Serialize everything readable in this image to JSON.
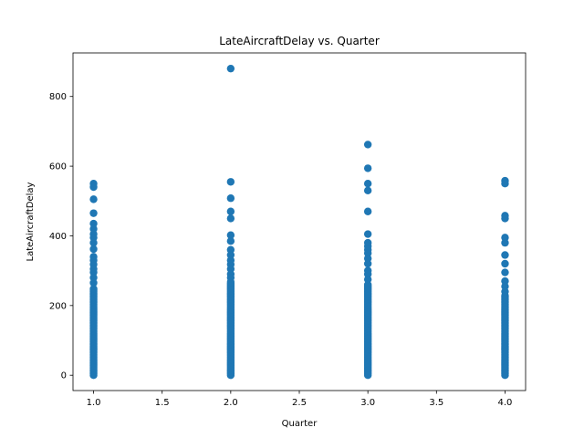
{
  "chart_data": {
    "type": "scatter",
    "title": "LateAircraftDelay vs. Quarter",
    "xlabel": "Quarter",
    "ylabel": "LateAircraftDelay",
    "xlim": [
      0.85,
      4.15
    ],
    "ylim": [
      -44,
      925
    ],
    "xticks": [
      1.0,
      1.5,
      2.0,
      2.5,
      3.0,
      3.5,
      4.0
    ],
    "xtick_labels": [
      "1.0",
      "1.5",
      "2.0",
      "2.5",
      "3.0",
      "3.5",
      "4.0"
    ],
    "yticks": [
      0,
      200,
      400,
      600,
      800
    ],
    "ytick_labels": [
      "0",
      "200",
      "400",
      "600",
      "800"
    ],
    "grid": false,
    "marker_color": "#1f77b4",
    "series": [
      {
        "x": 1.0,
        "dense_range": [
          0,
          250
        ],
        "outliers": [
          550,
          540,
          505,
          465,
          435,
          420,
          405,
          395,
          380,
          362,
          340,
          330,
          318,
          305,
          295,
          280,
          265
        ]
      },
      {
        "x": 2.0,
        "dense_range": [
          0,
          270
        ],
        "outliers": [
          880,
          555,
          508,
          470,
          450,
          402,
          385,
          360,
          345,
          330,
          318,
          305,
          290,
          280
        ]
      },
      {
        "x": 3.0,
        "dense_range": [
          0,
          260
        ],
        "outliers": [
          662,
          594,
          550,
          530,
          470,
          405,
          380,
          370,
          360,
          350,
          335,
          320,
          300,
          290,
          275
        ]
      },
      {
        "x": 4.0,
        "dense_range": [
          0,
          230
        ],
        "outliers": [
          558,
          550,
          458,
          450,
          395,
          380,
          345,
          320,
          295,
          270,
          255,
          240
        ]
      }
    ]
  }
}
